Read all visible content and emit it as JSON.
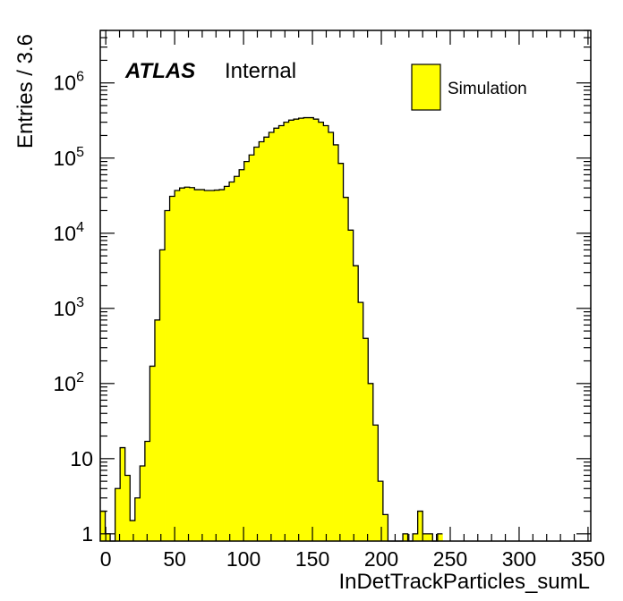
{
  "chart_data": {
    "type": "bar",
    "style": "histogram",
    "xlabel": "InDetTrackParticles_sumL",
    "ylabel": "Entries / 3.6",
    "xlim": [
      -4,
      352
    ],
    "ylim": [
      0.8,
      5000000
    ],
    "yscale": "log",
    "bin_width": 3.6,
    "x_ticks": [
      "0",
      "50",
      "100",
      "150",
      "200",
      "250",
      "300",
      "350"
    ],
    "y_ticks": [
      {
        "base": "1",
        "exp": ""
      },
      {
        "base": "10",
        "exp": ""
      },
      {
        "base": "10",
        "exp": "2"
      },
      {
        "base": "10",
        "exp": "3"
      },
      {
        "base": "10",
        "exp": "4"
      },
      {
        "base": "10",
        "exp": "5"
      },
      {
        "base": "10",
        "exp": "6"
      }
    ],
    "fill_color": "#ffff00",
    "line_color": "#000000",
    "legend_placement": "top-right",
    "series": [
      {
        "name": "Simulation",
        "x_start": -4,
        "values": [
          2,
          1,
          0,
          4,
          14,
          6,
          1.5,
          3,
          8,
          17,
          170,
          700,
          6000,
          20000,
          31000,
          37000,
          40000,
          41000,
          40500,
          38000,
          38000,
          37000,
          37000,
          37500,
          38000,
          42000,
          48000,
          57000,
          70000,
          90000,
          110000,
          140000,
          165000,
          190000,
          220000,
          250000,
          270000,
          300000,
          320000,
          330000,
          340000,
          345000,
          345000,
          330000,
          300000,
          270000,
          220000,
          150000,
          85000,
          30000,
          11000,
          3700,
          1200,
          400,
          100,
          28,
          5,
          1.8,
          0,
          0,
          0,
          1,
          0,
          1,
          2,
          1,
          1,
          0,
          1
        ]
      }
    ]
  },
  "annotations": {
    "atlas": "ATLAS",
    "internal": "Internal"
  }
}
